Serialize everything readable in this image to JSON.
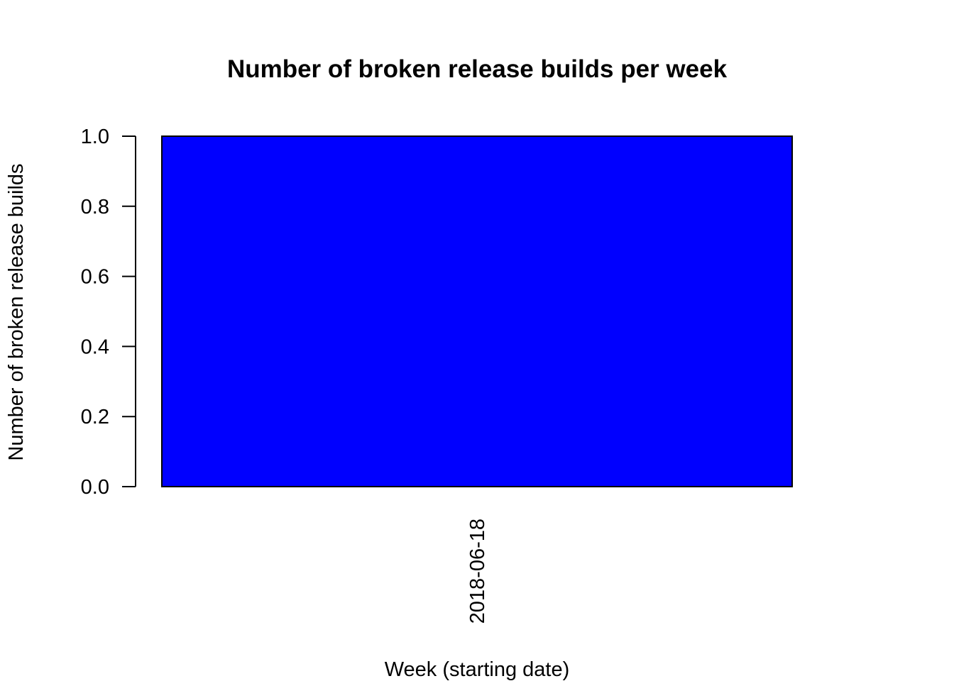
{
  "chart_data": {
    "type": "bar",
    "title": "Number of broken release builds per week",
    "xlabel": "Week (starting date)",
    "ylabel": "Number of broken release builds",
    "categories": [
      "2018-06-18"
    ],
    "values": [
      1
    ],
    "ylim": [
      0,
      1
    ],
    "yticks": [
      "0.0",
      "0.2",
      "0.4",
      "0.6",
      "0.8",
      "1.0"
    ],
    "bar_color": "#0000ff",
    "grid": false,
    "legend": "none"
  }
}
